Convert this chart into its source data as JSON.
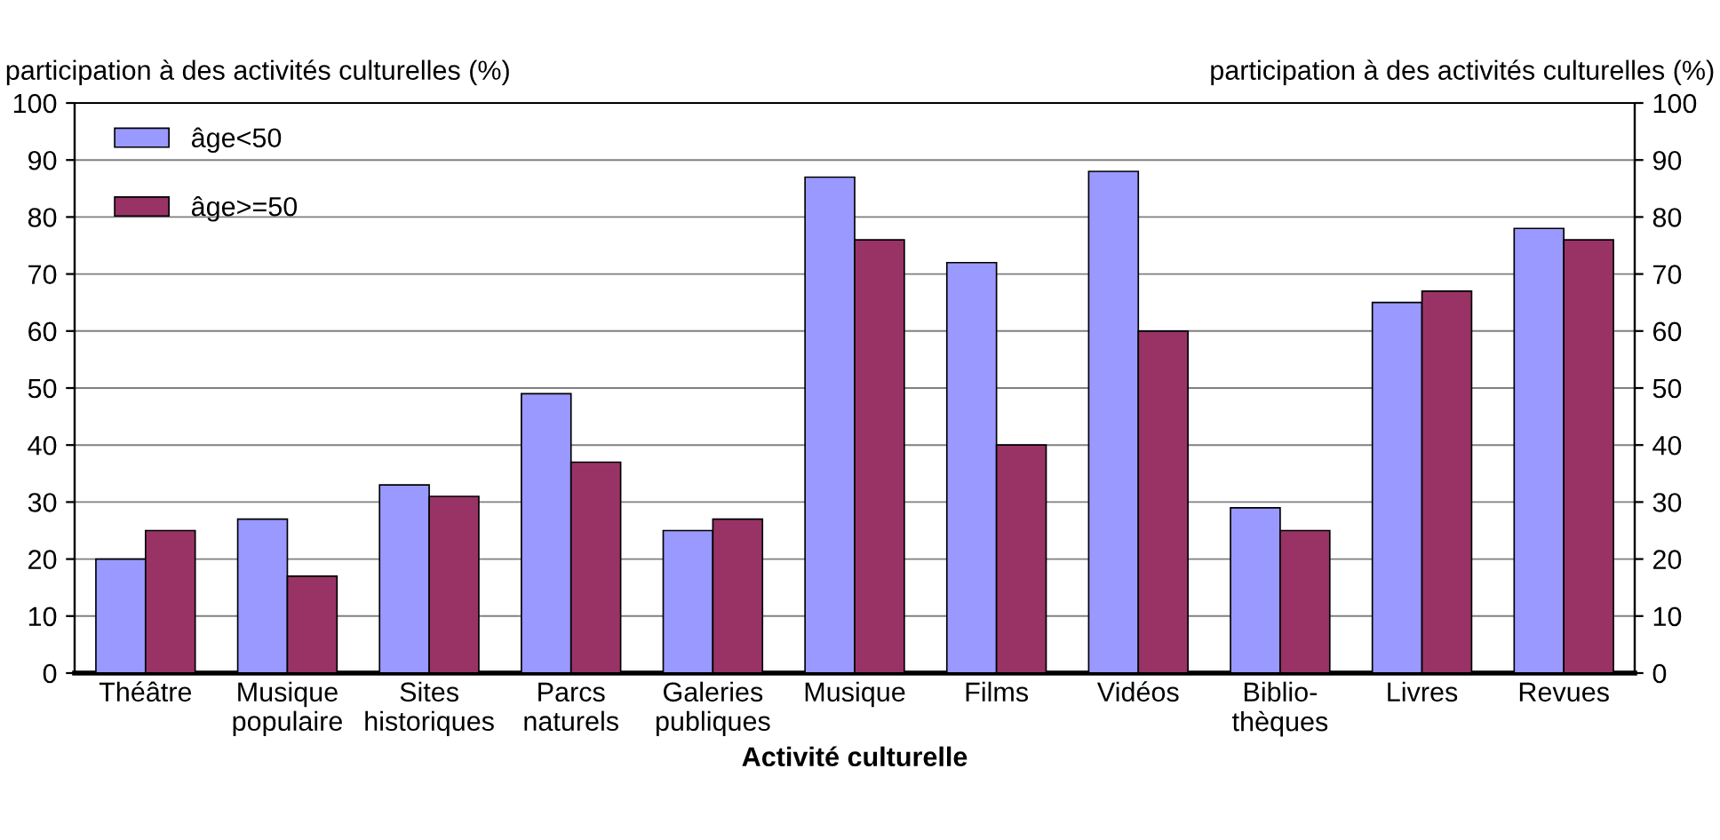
{
  "chart_data": {
    "type": "bar",
    "xlabel": "Activité culturelle",
    "ylabel": "participation à des activités culturelles (%)",
    "y2label": "participation à des activités culturelles (%)",
    "categories": [
      "Théâtre",
      "Musique\npopulaire",
      "Sites\nhistoriques",
      "Parcs\nnaturels",
      "Galeries\npubliques",
      "Musique",
      "Films",
      "Vidéos",
      "Biblio-\nthèques",
      "Livres",
      "Revues"
    ],
    "series": [
      {
        "name": "âge<50",
        "color": "#9999ff",
        "values": [
          20,
          27,
          33,
          49,
          25,
          87,
          72,
          88,
          29,
          65,
          78
        ]
      },
      {
        "name": "âge>=50",
        "color": "#993366",
        "values": [
          25,
          17,
          31,
          37,
          27,
          76,
          40,
          60,
          25,
          67,
          76
        ]
      }
    ],
    "ylim": [
      0,
      100
    ],
    "yticks": [
      0,
      10,
      20,
      30,
      40,
      50,
      60,
      70,
      80,
      90,
      100
    ],
    "y2lim": [
      0,
      100
    ],
    "y2ticks": [
      0,
      10,
      20,
      30,
      40,
      50,
      60,
      70,
      80,
      90,
      100
    ],
    "grid": "y",
    "legend": "top left"
  }
}
